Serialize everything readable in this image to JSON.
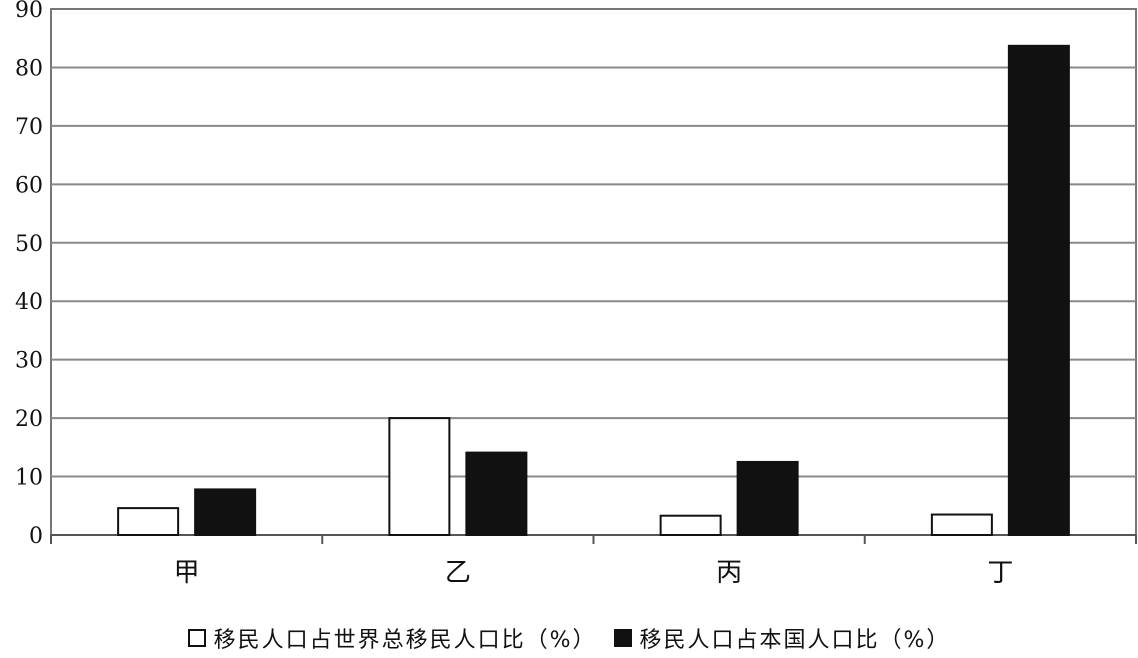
{
  "chart_data": {
    "type": "bar",
    "categories": [
      "甲",
      "乙",
      "丙",
      "丁"
    ],
    "series": [
      {
        "name": "移民人口占世界总移民人口比（%）",
        "values": [
          4.6,
          20.0,
          3.3,
          3.5
        ],
        "fill": "#ffffff",
        "stroke": "#111111"
      },
      {
        "name": "移民人口占本国人口比（%）",
        "values": [
          7.8,
          14.1,
          12.5,
          83.7
        ],
        "fill": "#111111",
        "stroke": "#111111"
      }
    ],
    "ylim": [
      0,
      90
    ],
    "yticks": [
      0,
      10,
      20,
      30,
      40,
      50,
      60,
      70,
      80,
      90
    ],
    "grid": true,
    "legend_position": "bottom",
    "title": "",
    "xlabel": "",
    "ylabel": ""
  }
}
